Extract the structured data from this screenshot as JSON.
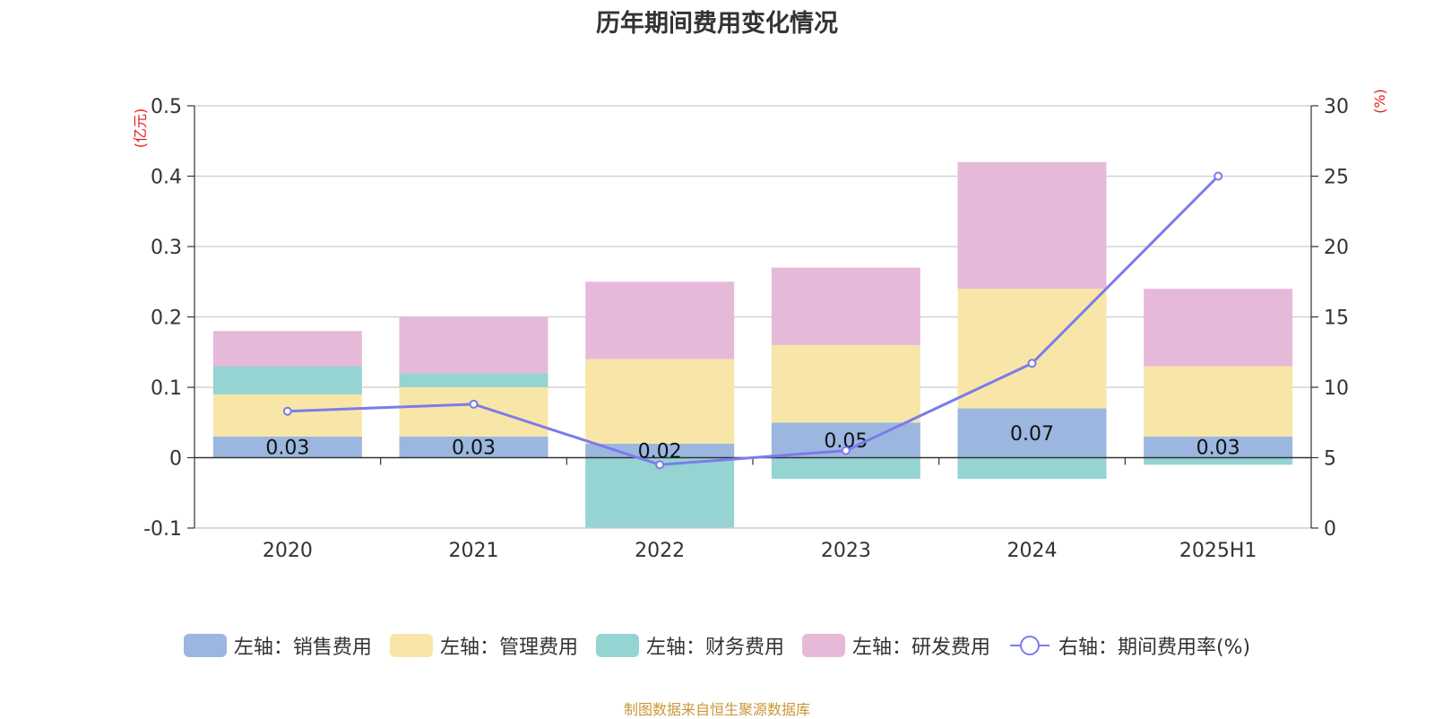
{
  "chart_data": {
    "type": "bar",
    "title": "历年期间费用变化情况",
    "categories": [
      "2020",
      "2021",
      "2022",
      "2023",
      "2024",
      "2025H1"
    ],
    "left_axis": {
      "unit": "(亿元)",
      "ylim": [
        -0.1,
        0.5
      ],
      "ticks": [
        "0.5",
        "0.4",
        "0.3",
        "0.2",
        "0.1",
        "0",
        "-0.1"
      ]
    },
    "right_axis": {
      "unit": "(%)",
      "ylim": [
        0,
        30
      ],
      "ticks": [
        "30",
        "25",
        "20",
        "15",
        "10",
        "5",
        "0"
      ]
    },
    "series": [
      {
        "name": "左轴：销售费用",
        "kind": "bar",
        "color": "#9bb7e0",
        "values": [
          0.03,
          0.03,
          0.02,
          0.05,
          0.07,
          0.03
        ]
      },
      {
        "name": "左轴：管理费用",
        "kind": "bar",
        "color": "#f8e6a8",
        "values": [
          0.06,
          0.07,
          0.12,
          0.11,
          0.17,
          0.1
        ]
      },
      {
        "name": "左轴：财务费用",
        "kind": "bar",
        "color": "#96d3d3",
        "values": [
          0.04,
          0.02,
          -0.1,
          -0.03,
          -0.03,
          -0.01
        ]
      },
      {
        "name": "左轴：研发费用",
        "kind": "bar",
        "color": "#e7b9d9",
        "values": [
          0.05,
          0.08,
          0.11,
          0.11,
          0.18,
          0.11
        ]
      },
      {
        "name": "右轴：期间费用率(%)",
        "kind": "line",
        "color": "#7b7bed",
        "values": [
          8.3,
          8.8,
          4.5,
          5.5,
          11.7,
          25.0
        ]
      }
    ],
    "data_labels": [
      "0.03",
      "0.03",
      "0.02",
      "0.05",
      "0.07",
      "0.03"
    ],
    "grid": true,
    "legend_position": "bottom"
  },
  "source_note": "制图数据来自恒生聚源数据库"
}
